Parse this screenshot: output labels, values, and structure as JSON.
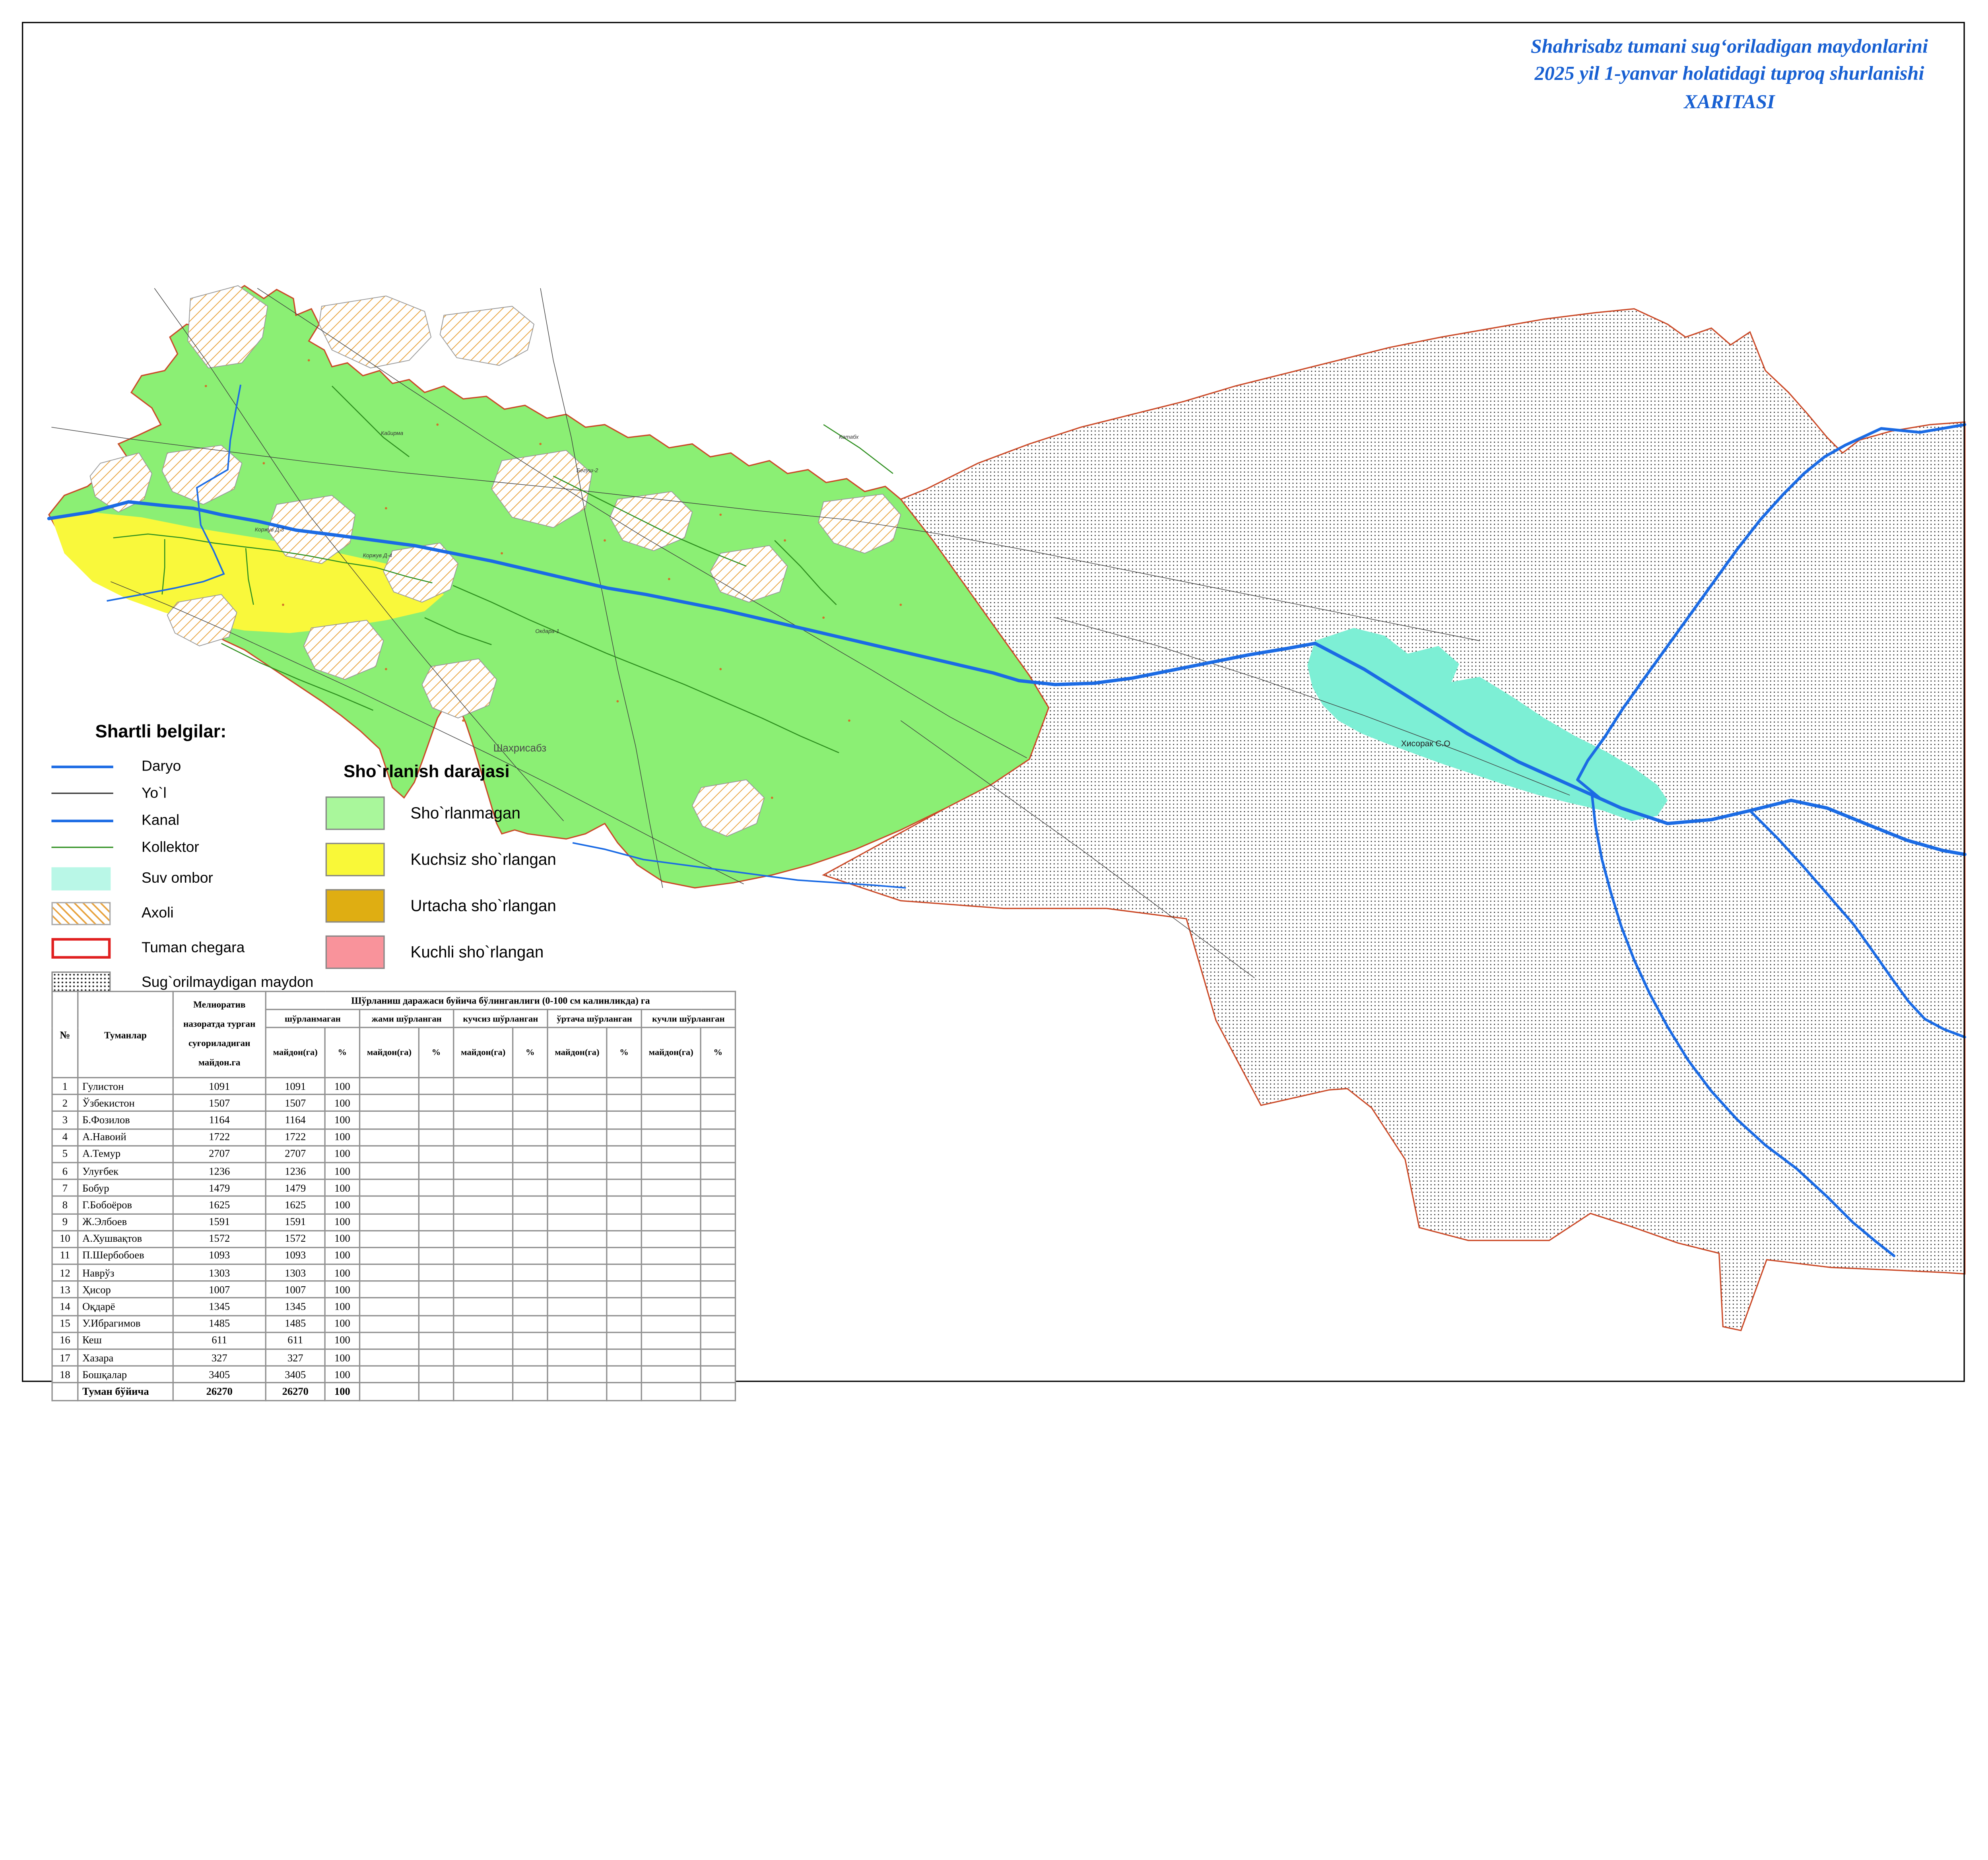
{
  "title": {
    "line1": "Shahrisabz tumani sug‘oriladigan maydonlarini",
    "line2": "2025 yil 1-yanvar holatidagi tuproq shurlanishi",
    "line3": "XARITASI"
  },
  "map_labels": {
    "city": "Шахрисабз",
    "reservoir": "Хисорак С.О"
  },
  "map": {
    "collector_labels": [
      "Коржув Д-3",
      "Коржув Д-4",
      "Кайирма",
      "Окдара-1",
      "Бегуш-2",
      "Катабх"
    ]
  },
  "legend": {
    "heading": "Shartli belgilar:",
    "items": [
      {
        "name": "daryo",
        "label": "Daryo"
      },
      {
        "name": "yol",
        "label": "Yo`l"
      },
      {
        "name": "kanal",
        "label": "Kanal"
      },
      {
        "name": "kollektor",
        "label": "Kollektor"
      },
      {
        "name": "suv-ombor",
        "label": "Suv ombor"
      },
      {
        "name": "axoli",
        "label": "Axoli"
      },
      {
        "name": "tuman-chegara",
        "label": "Tuman chegara"
      },
      {
        "name": "sugorilmaydigan-maydon",
        "label": "Sug`orilmaydigan maydon"
      }
    ]
  },
  "salinity_legend": {
    "heading": "Sho`rlanish darajasi",
    "items": [
      {
        "label": "Sho`rlanmagan",
        "color": "#A9F79B"
      },
      {
        "label": "Kuchsiz sho`rlangan",
        "color": "#F9F838"
      },
      {
        "label": "Urtacha sho`rlangan",
        "color": "#DFAE12"
      },
      {
        "label": "Kuchli sho`rlangan",
        "color": "#F9939B"
      }
    ]
  },
  "table": {
    "col_num": "№",
    "col_district": "Туманлар",
    "col_melio": "Мелиоратив назоратда турган суғориладиган майдон.га",
    "group_title": "Шўрланиш  даражаси буйича бўлинганлиги (0-100 см калинликда) га",
    "groups": [
      "шўрланмаган",
      "жами шўрланган",
      "кучсиз шўрланган",
      "ўртача шўрланган",
      "кучли шўрланган"
    ],
    "sub_area": "майдон(га)",
    "sub_pct": "%",
    "rows": [
      [
        "1",
        "Гулистон",
        "1091",
        "1091",
        "100",
        "",
        "",
        "",
        "",
        "",
        "",
        "",
        ""
      ],
      [
        "2",
        "Ўзбекистон",
        "1507",
        "1507",
        "100",
        "",
        "",
        "",
        "",
        "",
        "",
        "",
        ""
      ],
      [
        "3",
        "Б.Фозилов",
        "1164",
        "1164",
        "100",
        "",
        "",
        "",
        "",
        "",
        "",
        "",
        ""
      ],
      [
        "4",
        "А.Навоий",
        "1722",
        "1722",
        "100",
        "",
        "",
        "",
        "",
        "",
        "",
        "",
        ""
      ],
      [
        "5",
        "А.Темур",
        "2707",
        "2707",
        "100",
        "",
        "",
        "",
        "",
        "",
        "",
        "",
        ""
      ],
      [
        "6",
        "Улуғбек",
        "1236",
        "1236",
        "100",
        "",
        "",
        "",
        "",
        "",
        "",
        "",
        ""
      ],
      [
        "7",
        "Бобур",
        "1479",
        "1479",
        "100",
        "",
        "",
        "",
        "",
        "",
        "",
        "",
        ""
      ],
      [
        "8",
        "Г.Бобоёров",
        "1625",
        "1625",
        "100",
        "",
        "",
        "",
        "",
        "",
        "",
        "",
        ""
      ],
      [
        "9",
        "Ж.Элбоев",
        "1591",
        "1591",
        "100",
        "",
        "",
        "",
        "",
        "",
        "",
        "",
        ""
      ],
      [
        "10",
        "А.Хушвақтов",
        "1572",
        "1572",
        "100",
        "",
        "",
        "",
        "",
        "",
        "",
        "",
        ""
      ],
      [
        "11",
        "П.Шербобоев",
        "1093",
        "1093",
        "100",
        "",
        "",
        "",
        "",
        "",
        "",
        "",
        ""
      ],
      [
        "12",
        "Наврўз",
        "1303",
        "1303",
        "100",
        "",
        "",
        "",
        "",
        "",
        "",
        "",
        ""
      ],
      [
        "13",
        "Ҳисор",
        "1007",
        "1007",
        "100",
        "",
        "",
        "",
        "",
        "",
        "",
        "",
        ""
      ],
      [
        "14",
        "Оқдарё",
        "1345",
        "1345",
        "100",
        "",
        "",
        "",
        "",
        "",
        "",
        "",
        ""
      ],
      [
        "15",
        "У.Ибрагимов",
        "1485",
        "1485",
        "100",
        "",
        "",
        "",
        "",
        "",
        "",
        "",
        ""
      ],
      [
        "16",
        "Кеш",
        "611",
        "611",
        "100",
        "",
        "",
        "",
        "",
        "",
        "",
        "",
        ""
      ],
      [
        "17",
        "Хазара",
        "327",
        "327",
        "100",
        "",
        "",
        "",
        "",
        "",
        "",
        "",
        ""
      ],
      [
        "18",
        "Бошқалар",
        "3405",
        "3405",
        "100",
        "",
        "",
        "",
        "",
        "",
        "",
        "",
        ""
      ]
    ],
    "total_row": [
      "",
      "Туман бўйича",
      "26270",
      "26270",
      "100",
      "",
      "",
      "",
      "",
      "",
      "",
      "",
      ""
    ]
  },
  "colors": {
    "title_blue": "#1860D2",
    "map_green": "#8BEF74",
    "unsaline_green": "#A9F79B",
    "weak_saline_yellow": "#F9F838",
    "medium_saline_gold": "#DFAE12",
    "strong_saline_pink": "#F9939B",
    "water_cyan": "#7DEFD5",
    "river_blue": "#1B6BE4",
    "collector_green": "#2E8F1F",
    "boundary_red": "#CB4A28"
  }
}
